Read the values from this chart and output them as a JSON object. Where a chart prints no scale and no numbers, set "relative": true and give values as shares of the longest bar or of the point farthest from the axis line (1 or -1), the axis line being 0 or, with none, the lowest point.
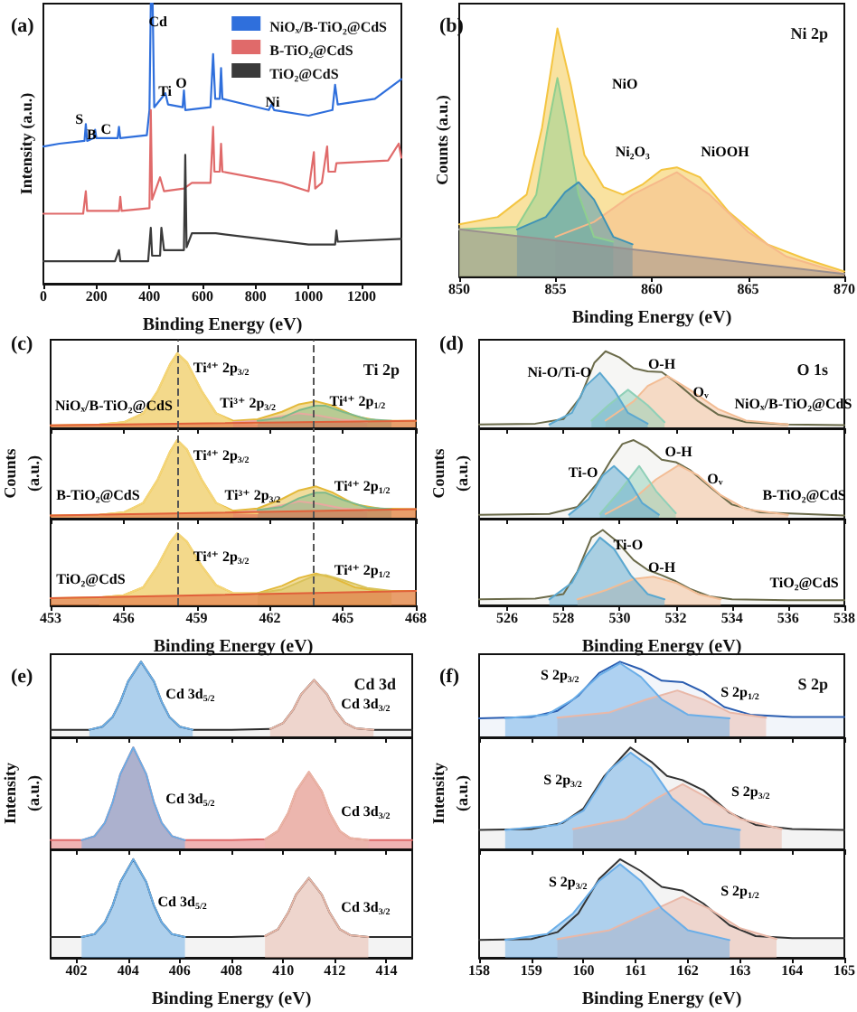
{
  "chart_data": [
    {
      "type": "line",
      "title": "(a)",
      "xlabel": "Binding Energy (eV)",
      "ylabel": "Intensity (a.u.)",
      "relative": true,
      "xlim": [
        0,
        1350
      ],
      "xticks": [
        0,
        200,
        400,
        600,
        800,
        1000,
        1200
      ],
      "legend": "top right",
      "annotations": [
        "S",
        "B",
        "C",
        "Cd",
        "Ti",
        "O",
        "Ni"
      ],
      "series": [
        {
          "name": "NiOₓ/B-TiO₂@CdS",
          "color": "#2f6fdc",
          "x": [
            0,
            60,
            155,
            160,
            165,
            190,
            195,
            200,
            280,
            285,
            290,
            390,
            400,
            405,
            412,
            418,
            460,
            470,
            525,
            530,
            535,
            630,
            640,
            648,
            665,
            670,
            675,
            850,
            860,
            870,
            1000,
            1090,
            1100,
            1110,
            1250,
            1350
          ],
          "values": [
            0.49,
            0.5,
            0.51,
            0.57,
            0.51,
            0.52,
            0.55,
            0.52,
            0.52,
            0.56,
            0.52,
            0.53,
            0.62,
            1.0,
            1.0,
            0.63,
            0.68,
            0.64,
            0.63,
            0.69,
            0.62,
            0.63,
            0.82,
            0.66,
            0.66,
            0.77,
            0.66,
            0.62,
            0.64,
            0.62,
            0.6,
            0.62,
            0.71,
            0.64,
            0.66,
            0.73
          ]
        },
        {
          "name": "B-TiO₂@CdS",
          "color": "#e06a6a",
          "x": [
            0,
            150,
            160,
            165,
            285,
            290,
            295,
            400,
            405,
            410,
            440,
            455,
            530,
            560,
            630,
            640,
            645,
            665,
            670,
            675,
            900,
            1000,
            1020,
            1025,
            1050,
            1070,
            1075,
            1100,
            1105,
            1300,
            1340,
            1350
          ],
          "values": [
            0.25,
            0.25,
            0.33,
            0.26,
            0.26,
            0.31,
            0.26,
            0.27,
            0.62,
            0.3,
            0.38,
            0.33,
            0.34,
            0.36,
            0.36,
            0.56,
            0.4,
            0.4,
            0.5,
            0.4,
            0.36,
            0.33,
            0.47,
            0.34,
            0.36,
            0.49,
            0.4,
            0.4,
            0.43,
            0.44,
            0.5,
            0.45
          ]
        },
        {
          "name": "TiO₂@CdS",
          "color": "#3a3a3a",
          "x": [
            0,
            270,
            285,
            290,
            395,
            405,
            410,
            440,
            445,
            455,
            530,
            535,
            540,
            560,
            650,
            1000,
            1100,
            1105,
            1110,
            1350
          ],
          "values": [
            0.08,
            0.08,
            0.12,
            0.08,
            0.08,
            0.2,
            0.1,
            0.1,
            0.2,
            0.12,
            0.12,
            0.46,
            0.13,
            0.18,
            0.18,
            0.14,
            0.14,
            0.19,
            0.15,
            0.16
          ]
        }
      ]
    },
    {
      "type": "area",
      "title": "(b)",
      "subtitle": "Ni 2p",
      "xlabel": "Binding Energy (eV)",
      "ylabel": "Counts (a.u.)",
      "relative": true,
      "xlim": [
        850,
        870
      ],
      "xticks": [
        850,
        855,
        860,
        865,
        870
      ],
      "annotations": [
        "NiO",
        "Ni₂O₃",
        "NiOOH"
      ],
      "series": [
        {
          "color": "#f4c542",
          "x": [
            850,
            852,
            853.5,
            854.3,
            855.1,
            855.8,
            856.5,
            857.5,
            858.5,
            859.5,
            860.5,
            861.3,
            862.5,
            864,
            866,
            868,
            870
          ],
          "values": [
            0.21,
            0.24,
            0.33,
            0.6,
            1.0,
            0.77,
            0.49,
            0.36,
            0.33,
            0.37,
            0.43,
            0.44,
            0.4,
            0.26,
            0.13,
            0.07,
            0.02
          ]
        },
        {
          "color": "#f6b98a",
          "x": [
            855,
            857,
            859,
            861.3,
            863,
            865,
            867,
            870
          ],
          "values": [
            0.16,
            0.22,
            0.33,
            0.42,
            0.33,
            0.18,
            0.08,
            0.01
          ]
        },
        {
          "color": "#8fcf8f",
          "x": [
            850,
            853,
            854,
            854.6,
            855.1,
            855.6,
            856.2,
            857,
            858
          ],
          "values": [
            0.19,
            0.2,
            0.33,
            0.6,
            0.8,
            0.6,
            0.33,
            0.16,
            0.14
          ]
        },
        {
          "color": "#3f93b5",
          "x": [
            853,
            854.5,
            855.5,
            856.2,
            857,
            858,
            859
          ],
          "values": [
            0.19,
            0.24,
            0.34,
            0.38,
            0.31,
            0.16,
            0.13
          ]
        },
        {
          "color": "#9a8f8f",
          "x": [
            850,
            870
          ],
          "values": [
            0.19,
            0.01
          ]
        }
      ]
    },
    {
      "type": "area",
      "title": "(c)",
      "subtitle": "Ti 2p",
      "relative": true,
      "xlim": [
        453,
        468
      ],
      "xticks": [
        453,
        456,
        459,
        462,
        465,
        468
      ],
      "tick_labels": false,
      "ref_lines": [
        {
          "axis": "x",
          "value": 458.2,
          "color": "#555555",
          "line_style": "dashed"
        },
        {
          "axis": "x",
          "value": 463.8,
          "color": "#555555",
          "line_style": "dashed"
        }
      ],
      "annotations": [
        "Ti⁴⁺ 2p$_{3/2}$",
        "Ti³⁺ 2p$_{3/2}$",
        "Ti⁴⁺ 2p$_{1/2}$",
        "NiOₓ/B-TiO₂@CdS"
      ],
      "series": [
        {
          "color": "#e3b93a",
          "x": [
            453,
            455,
            456,
            456.8,
            457.4,
            457.9,
            458.2,
            458.6,
            459.2,
            459.8,
            460.5,
            461.5,
            462.5,
            463.2,
            463.9,
            464.6,
            465.5,
            466.5,
            468
          ],
          "values": [
            0.04,
            0.05,
            0.08,
            0.2,
            0.5,
            0.85,
            1.0,
            0.88,
            0.5,
            0.2,
            0.1,
            0.12,
            0.22,
            0.32,
            0.36,
            0.3,
            0.16,
            0.1,
            0.1
          ]
        },
        {
          "color": "#f5d679",
          "x": [
            455,
            456,
            456.8,
            457.4,
            457.9,
            458.2,
            458.6,
            459.2,
            459.8,
            460.5,
            461.5
          ],
          "values": [
            0.05,
            0.08,
            0.2,
            0.5,
            0.85,
            1.0,
            0.88,
            0.5,
            0.2,
            0.08,
            0.07
          ]
        },
        {
          "color": "#e9a8a0",
          "x": [
            460.5,
            461.5,
            462.5,
            463.2,
            464,
            465,
            466
          ],
          "values": [
            0.08,
            0.1,
            0.16,
            0.2,
            0.17,
            0.11,
            0.09
          ]
        },
        {
          "color": "#7fb98a",
          "x": [
            461.5,
            462.5,
            463.2,
            463.9,
            464.3,
            465,
            466,
            467
          ],
          "values": [
            0.1,
            0.14,
            0.24,
            0.3,
            0.3,
            0.22,
            0.12,
            0.1
          ]
        },
        {
          "color": "#e0603a",
          "x": [
            453,
            468
          ],
          "values": [
            0.04,
            0.1
          ]
        }
      ]
    },
    {
      "type": "area",
      "ylabel": "Counts (a.u.)",
      "relative": true,
      "xlim": [
        453,
        468
      ],
      "xticks": [
        453,
        456,
        459,
        462,
        465,
        468
      ],
      "tick_labels": false,
      "ref_lines": [
        {
          "axis": "x",
          "value": 458.2,
          "color": "#555555",
          "line_style": "dashed"
        },
        {
          "axis": "x",
          "value": 463.8,
          "color": "#555555",
          "line_style": "dashed"
        }
      ],
      "annotations": [
        "Ti⁴⁺ 2p$_{3/2}$",
        "Ti³⁺ 2p$_{3/2}$",
        "Ti⁴⁺ 2p$_{1/2}$",
        "B-TiO₂@CdS"
      ],
      "series": [
        {
          "color": "#e3b93a",
          "x": [
            453,
            455,
            456,
            456.8,
            457.4,
            457.9,
            458.2,
            458.6,
            459.2,
            459.8,
            460.5,
            461.5,
            462.5,
            463.2,
            463.9,
            464.6,
            465.5,
            466.5,
            468
          ],
          "values": [
            0.04,
            0.05,
            0.08,
            0.2,
            0.5,
            0.85,
            1.0,
            0.88,
            0.5,
            0.2,
            0.1,
            0.13,
            0.25,
            0.36,
            0.41,
            0.33,
            0.18,
            0.13,
            0.12
          ]
        },
        {
          "color": "#f5d679",
          "x": [
            455,
            456,
            456.8,
            457.4,
            457.9,
            458.2,
            458.6,
            459.2,
            459.8,
            460.5,
            461.5
          ],
          "values": [
            0.05,
            0.08,
            0.2,
            0.5,
            0.85,
            1.0,
            0.88,
            0.5,
            0.2,
            0.08,
            0.07
          ]
        },
        {
          "color": "#e9a8a0",
          "x": [
            460.5,
            461.5,
            462.5,
            463.2,
            464,
            465,
            466
          ],
          "values": [
            0.08,
            0.1,
            0.17,
            0.22,
            0.19,
            0.13,
            0.11
          ]
        },
        {
          "color": "#7fb98a",
          "x": [
            461.5,
            462.5,
            463.2,
            463.9,
            464.3,
            465,
            466,
            467
          ],
          "values": [
            0.11,
            0.15,
            0.26,
            0.33,
            0.33,
            0.24,
            0.14,
            0.12
          ]
        },
        {
          "color": "#e0603a",
          "x": [
            453,
            468
          ],
          "values": [
            0.04,
            0.12
          ]
        }
      ]
    },
    {
      "type": "area",
      "xlabel": "Binding Energy (eV)",
      "relative": true,
      "xlim": [
        453,
        468
      ],
      "xticks": [
        453,
        456,
        459,
        462,
        465,
        468
      ],
      "ref_lines": [
        {
          "axis": "x",
          "value": 458.2,
          "color": "#555555",
          "line_style": "dashed"
        },
        {
          "axis": "x",
          "value": 463.8,
          "color": "#555555",
          "line_style": "dashed"
        }
      ],
      "annotations": [
        "Ti⁴⁺ 2p$_{3/2}$",
        "Ti⁴⁺ 2p$_{1/2}$",
        "TiO₂@CdS"
      ],
      "series": [
        {
          "color": "#e3b93a",
          "x": [
            453,
            455,
            456,
            456.8,
            457.4,
            457.9,
            458.2,
            458.6,
            459.2,
            459.8,
            460.5,
            461.5,
            462.5,
            463.2,
            463.9,
            464.6,
            465.5,
            466.5,
            468
          ],
          "values": [
            0.1,
            0.11,
            0.14,
            0.25,
            0.55,
            0.87,
            1.0,
            0.88,
            0.55,
            0.28,
            0.17,
            0.17,
            0.27,
            0.38,
            0.44,
            0.38,
            0.25,
            0.2,
            0.2
          ]
        },
        {
          "color": "#f5d679",
          "x": [
            455,
            456,
            456.8,
            457.4,
            457.9,
            458.2,
            458.6,
            459.2,
            459.8,
            460.5,
            461.5
          ],
          "values": [
            0.11,
            0.14,
            0.25,
            0.55,
            0.87,
            1.0,
            0.88,
            0.55,
            0.28,
            0.17,
            0.15
          ]
        },
        {
          "color": "#d9c25a",
          "x": [
            461.5,
            462.5,
            463.2,
            463.9,
            464.3,
            465,
            466,
            467
          ],
          "values": [
            0.17,
            0.22,
            0.32,
            0.42,
            0.42,
            0.35,
            0.24,
            0.2
          ]
        },
        {
          "color": "#e0603a",
          "x": [
            453,
            468
          ],
          "values": [
            0.1,
            0.2
          ]
        }
      ]
    },
    {
      "type": "area",
      "title": "(d)",
      "subtitle": "O 1s",
      "relative": true,
      "xlim": [
        525,
        538
      ],
      "xticks": [
        526,
        528,
        530,
        532,
        534,
        536,
        538
      ],
      "tick_labels": false,
      "annotations": [
        "Ni-O/Ti-O",
        "O-H",
        "Oᵥ",
        "NiOₓ/B-TiO₂@CdS"
      ],
      "series": [
        {
          "color": "#6b6b4a",
          "x": [
            525,
            527,
            528,
            528.6,
            529.1,
            529.5,
            530,
            530.5,
            531,
            531.5,
            532,
            532.8,
            533.5,
            534.5,
            536,
            538
          ],
          "values": [
            0.05,
            0.06,
            0.12,
            0.4,
            0.85,
            1.0,
            0.92,
            0.78,
            0.74,
            0.73,
            0.6,
            0.35,
            0.18,
            0.08,
            0.05,
            0.04
          ]
        },
        {
          "color": "#f3bd95",
          "x": [
            529.5,
            530.5,
            531,
            531.7,
            532.5,
            533.5,
            534.5,
            536
          ],
          "values": [
            0.1,
            0.35,
            0.55,
            0.68,
            0.5,
            0.25,
            0.1,
            0.05
          ]
        },
        {
          "color": "#8fd0b8",
          "x": [
            529,
            529.6,
            530.3,
            531,
            531.6
          ],
          "values": [
            0.1,
            0.3,
            0.5,
            0.3,
            0.08
          ]
        },
        {
          "color": "#5ba8d0",
          "x": [
            527.5,
            528.3,
            528.8,
            529.3,
            529.8,
            530.3,
            531
          ],
          "values": [
            0.05,
            0.2,
            0.55,
            0.72,
            0.5,
            0.2,
            0.06
          ]
        }
      ]
    },
    {
      "type": "area",
      "ylabel": "Counts (a.u.)",
      "relative": true,
      "xlim": [
        525,
        538
      ],
      "xticks": [
        526,
        528,
        530,
        532,
        534,
        536,
        538
      ],
      "tick_labels": false,
      "annotations": [
        "Ti-O",
        "O-H",
        "Oᵥ",
        "B-TiO₂@CdS"
      ],
      "series": [
        {
          "color": "#6b6b4a",
          "x": [
            525,
            527.5,
            528.5,
            529.2,
            529.7,
            530.1,
            530.5,
            531,
            531.5,
            532,
            532.5,
            533.3,
            534,
            535,
            538
          ],
          "values": [
            0.05,
            0.06,
            0.15,
            0.45,
            0.75,
            0.95,
            1.0,
            0.9,
            0.75,
            0.72,
            0.62,
            0.38,
            0.18,
            0.08,
            0.04
          ]
        },
        {
          "color": "#f3bd95",
          "x": [
            529.5,
            530.5,
            531.3,
            532.1,
            532.8,
            533.6,
            534.5,
            536
          ],
          "values": [
            0.06,
            0.25,
            0.5,
            0.68,
            0.55,
            0.3,
            0.12,
            0.05
          ]
        },
        {
          "color": "#8fd0b8",
          "x": [
            529.3,
            530,
            530.7,
            531.3,
            532
          ],
          "values": [
            0.06,
            0.35,
            0.67,
            0.35,
            0.07
          ]
        },
        {
          "color": "#5ba8d0",
          "x": [
            528.2,
            528.9,
            529.4,
            529.8,
            530.3,
            530.8,
            531.4
          ],
          "values": [
            0.05,
            0.25,
            0.55,
            0.67,
            0.5,
            0.2,
            0.05
          ]
        }
      ]
    },
    {
      "type": "area",
      "xlabel": "Binding Energy (eV)",
      "relative": true,
      "xlim": [
        525,
        538
      ],
      "xticks": [
        526,
        528,
        530,
        532,
        534,
        536,
        538
      ],
      "annotations": [
        "Ti-O",
        "O-H",
        "TiO₂@CdS"
      ],
      "series": [
        {
          "color": "#6b6b4a",
          "x": [
            525,
            527,
            528,
            528.5,
            529,
            529.4,
            529.9,
            530.5,
            531,
            531.5,
            532,
            532.5,
            533.2,
            534,
            536,
            538
          ],
          "values": [
            0.08,
            0.09,
            0.15,
            0.45,
            0.9,
            1.0,
            0.85,
            0.6,
            0.47,
            0.4,
            0.32,
            0.22,
            0.12,
            0.08,
            0.07,
            0.07
          ]
        },
        {
          "color": "#f3bd95",
          "x": [
            528.5,
            529.5,
            530.5,
            531.2,
            532,
            532.8,
            533.6
          ],
          "values": [
            0.08,
            0.2,
            0.35,
            0.38,
            0.3,
            0.15,
            0.08
          ]
        },
        {
          "color": "#5ba8d0",
          "x": [
            527.5,
            528.3,
            528.8,
            529.3,
            529.8,
            530.4,
            531,
            531.6
          ],
          "values": [
            0.08,
            0.3,
            0.65,
            0.9,
            0.75,
            0.4,
            0.15,
            0.08
          ]
        }
      ]
    },
    {
      "type": "area",
      "title": "(e)",
      "subtitle": "Cd 3d",
      "relative": true,
      "xlim": [
        401,
        415
      ],
      "xticks": [
        402,
        404,
        406,
        408,
        410,
        412,
        414
      ],
      "tick_labels": false,
      "annotations": [
        "Cd 3d$_{5/2}$",
        "Cd 3d$_{3/2}$"
      ],
      "series": [
        {
          "color": "#2b2b2b",
          "x": [
            401,
            402.5,
            403,
            403.4,
            403.7,
            404,
            404.5,
            405,
            405.3,
            405.6,
            406,
            406.5,
            408,
            409.5,
            410,
            410.4,
            410.7,
            411.2,
            411.7,
            412,
            412.4,
            412.8,
            413.5,
            415
          ],
          "values": [
            0.1,
            0.1,
            0.14,
            0.27,
            0.47,
            0.74,
            1.0,
            0.74,
            0.47,
            0.27,
            0.14,
            0.1,
            0.1,
            0.11,
            0.19,
            0.37,
            0.57,
            0.76,
            0.57,
            0.37,
            0.19,
            0.12,
            0.1,
            0.1
          ]
        },
        {
          "color": "#6aaee8",
          "x": [
            402.5,
            403,
            403.4,
            403.7,
            404,
            404.5,
            405,
            405.3,
            405.6,
            406,
            406.5
          ],
          "values": [
            0.1,
            0.14,
            0.27,
            0.47,
            0.74,
            1.0,
            0.74,
            0.47,
            0.27,
            0.14,
            0.1
          ]
        },
        {
          "color": "#e9b8a8",
          "x": [
            409.5,
            410,
            410.4,
            410.7,
            411.2,
            411.7,
            412,
            412.4,
            412.8,
            413.5
          ],
          "values": [
            0.11,
            0.19,
            0.37,
            0.57,
            0.76,
            0.57,
            0.37,
            0.19,
            0.12,
            0.1
          ]
        }
      ]
    },
    {
      "type": "area",
      "ylabel": "Intensity (a.u.)",
      "relative": true,
      "xlim": [
        401,
        415
      ],
      "xticks": [
        402,
        404,
        406,
        408,
        410,
        412,
        414
      ],
      "tick_labels": false,
      "annotations": [
        "Cd 3d$_{5/2}$",
        "Cd 3d$_{3/2}$"
      ],
      "series": [
        {
          "color": "#e06a6a",
          "x": [
            401,
            402.2,
            402.7,
            403.1,
            403.4,
            403.7,
            404.2,
            404.7,
            405,
            405.3,
            405.7,
            406.2,
            408,
            409.3,
            409.8,
            410.2,
            410.5,
            411,
            411.5,
            411.8,
            412.2,
            412.6,
            413.3,
            415
          ],
          "values": [
            0.09,
            0.09,
            0.13,
            0.26,
            0.46,
            0.74,
            1.0,
            0.74,
            0.46,
            0.26,
            0.13,
            0.09,
            0.09,
            0.1,
            0.18,
            0.36,
            0.57,
            0.76,
            0.57,
            0.36,
            0.18,
            0.11,
            0.09,
            0.09
          ]
        },
        {
          "color": "#6aaee8",
          "x": [
            402.2,
            402.7,
            403.1,
            403.4,
            403.7,
            404.2,
            404.7,
            405,
            405.3,
            405.7,
            406.2
          ],
          "values": [
            0.09,
            0.13,
            0.26,
            0.46,
            0.74,
            1.0,
            0.74,
            0.46,
            0.26,
            0.13,
            0.09
          ]
        },
        {
          "color": "#e9b8a8",
          "x": [
            409.3,
            409.8,
            410.2,
            410.5,
            411,
            411.5,
            411.8,
            412.2,
            412.6,
            413.3
          ],
          "values": [
            0.1,
            0.18,
            0.36,
            0.57,
            0.76,
            0.57,
            0.36,
            0.18,
            0.11,
            0.09
          ]
        }
      ]
    },
    {
      "type": "area",
      "xlabel": "Binding Energy (eV)",
      "relative": true,
      "xlim": [
        401,
        415
      ],
      "xticks": [
        402,
        404,
        406,
        408,
        410,
        412,
        414
      ],
      "annotations": [
        "Cd 3d$_{5/2}$",
        "Cd 3d$_{3/2}$"
      ],
      "series": [
        {
          "color": "#2b2b2b",
          "x": [
            401,
            402.2,
            402.7,
            403.1,
            403.4,
            403.7,
            404.2,
            404.7,
            405,
            405.3,
            405.7,
            406.2,
            408,
            409.3,
            409.8,
            410.2,
            410.5,
            411,
            411.5,
            411.8,
            412.2,
            412.6,
            413.3,
            415
          ],
          "values": [
            0.21,
            0.21,
            0.24,
            0.36,
            0.53,
            0.77,
            1.0,
            0.77,
            0.53,
            0.36,
            0.24,
            0.21,
            0.21,
            0.22,
            0.29,
            0.46,
            0.64,
            0.81,
            0.64,
            0.46,
            0.29,
            0.23,
            0.21,
            0.21
          ]
        },
        {
          "color": "#6aaee8",
          "x": [
            402.2,
            402.7,
            403.1,
            403.4,
            403.7,
            404.2,
            404.7,
            405,
            405.3,
            405.7,
            406.2
          ],
          "values": [
            0.21,
            0.24,
            0.36,
            0.53,
            0.77,
            1.0,
            0.77,
            0.53,
            0.36,
            0.24,
            0.21
          ]
        },
        {
          "color": "#e9b8a8",
          "x": [
            409.3,
            409.8,
            410.2,
            410.5,
            411,
            411.5,
            411.8,
            412.2,
            412.6,
            413.3
          ],
          "values": [
            0.22,
            0.29,
            0.46,
            0.64,
            0.81,
            0.64,
            0.46,
            0.29,
            0.23,
            0.21
          ]
        }
      ]
    },
    {
      "type": "area",
      "title": "(f)",
      "subtitle": "S 2p",
      "relative": true,
      "xlim": [
        158,
        165
      ],
      "xticks": [
        158,
        159,
        160,
        161,
        162,
        163,
        164,
        165
      ],
      "tick_labels": false,
      "annotations": [
        "S 2p$_{3/2}$",
        "S 2p$_{1/2}$"
      ],
      "series": [
        {
          "color": "#2a5db0",
          "x": [
            158,
            159,
            159.5,
            159.9,
            160.3,
            160.7,
            161.1,
            161.5,
            161.9,
            162.3,
            162.7,
            163.2,
            164,
            165
          ],
          "values": [
            0.25,
            0.27,
            0.35,
            0.55,
            0.85,
            1.0,
            0.9,
            0.75,
            0.73,
            0.6,
            0.4,
            0.3,
            0.27,
            0.27
          ]
        },
        {
          "color": "#e9b8a8",
          "x": [
            159.5,
            160.5,
            161.2,
            161.8,
            162.3,
            162.8,
            163.5
          ],
          "values": [
            0.26,
            0.33,
            0.5,
            0.62,
            0.5,
            0.33,
            0.26
          ]
        },
        {
          "color": "#6aaee8",
          "x": [
            158.5,
            159.3,
            159.8,
            160.3,
            160.7,
            161.1,
            161.5,
            162,
            162.8
          ],
          "values": [
            0.25,
            0.3,
            0.5,
            0.82,
            0.98,
            0.8,
            0.5,
            0.3,
            0.25
          ]
        }
      ]
    },
    {
      "type": "area",
      "ylabel": "Intensity (a.u.)",
      "relative": true,
      "xlim": [
        158,
        165
      ],
      "xticks": [
        158,
        159,
        160,
        161,
        162,
        163,
        164,
        165
      ],
      "tick_labels": false,
      "annotations": [
        "S 2p$_{3/2}$",
        "S 2p$_{3/2}$"
      ],
      "series": [
        {
          "color": "#333333",
          "x": [
            158,
            159,
            159.6,
            160,
            160.4,
            160.9,
            161.3,
            161.6,
            161.9,
            162.3,
            162.8,
            163.3,
            164,
            165
          ],
          "values": [
            0.19,
            0.2,
            0.26,
            0.4,
            0.72,
            1.0,
            0.86,
            0.72,
            0.68,
            0.58,
            0.36,
            0.24,
            0.2,
            0.19
          ]
        },
        {
          "color": "#e9b8a8",
          "x": [
            159.8,
            160.8,
            161.4,
            161.9,
            162.4,
            163,
            163.8
          ],
          "values": [
            0.2,
            0.3,
            0.5,
            0.64,
            0.5,
            0.3,
            0.2
          ]
        },
        {
          "color": "#6aaee8",
          "x": [
            158.5,
            159.5,
            160,
            160.5,
            160.9,
            161.3,
            161.7,
            162.3,
            163
          ],
          "values": [
            0.19,
            0.24,
            0.38,
            0.78,
            0.95,
            0.8,
            0.5,
            0.25,
            0.19
          ]
        }
      ]
    },
    {
      "type": "area",
      "xlabel": "Binding Energy (eV)",
      "relative": true,
      "xlim": [
        158,
        165
      ],
      "xticks": [
        158,
        159,
        160,
        161,
        162,
        163,
        164,
        165
      ],
      "annotations": [
        "S 2p$_{3/2}$",
        "S 2p$_{1/2}$"
      ],
      "series": [
        {
          "color": "#333333",
          "x": [
            158,
            159,
            159.5,
            159.9,
            160.3,
            160.7,
            161.1,
            161.5,
            161.9,
            162.3,
            162.8,
            163.3,
            164,
            165
          ],
          "values": [
            0.18,
            0.19,
            0.26,
            0.45,
            0.8,
            1.0,
            0.88,
            0.72,
            0.68,
            0.55,
            0.33,
            0.22,
            0.2,
            0.2
          ]
        },
        {
          "color": "#e9b8a8",
          "x": [
            159.5,
            160.5,
            161.2,
            161.9,
            162.4,
            163,
            163.7
          ],
          "values": [
            0.19,
            0.28,
            0.45,
            0.62,
            0.5,
            0.3,
            0.19
          ]
        },
        {
          "color": "#6aaee8",
          "x": [
            158.5,
            159.3,
            159.8,
            160.3,
            160.7,
            161.1,
            161.5,
            162,
            162.8
          ],
          "values": [
            0.18,
            0.24,
            0.45,
            0.78,
            0.95,
            0.78,
            0.5,
            0.28,
            0.18
          ]
        }
      ]
    }
  ]
}
